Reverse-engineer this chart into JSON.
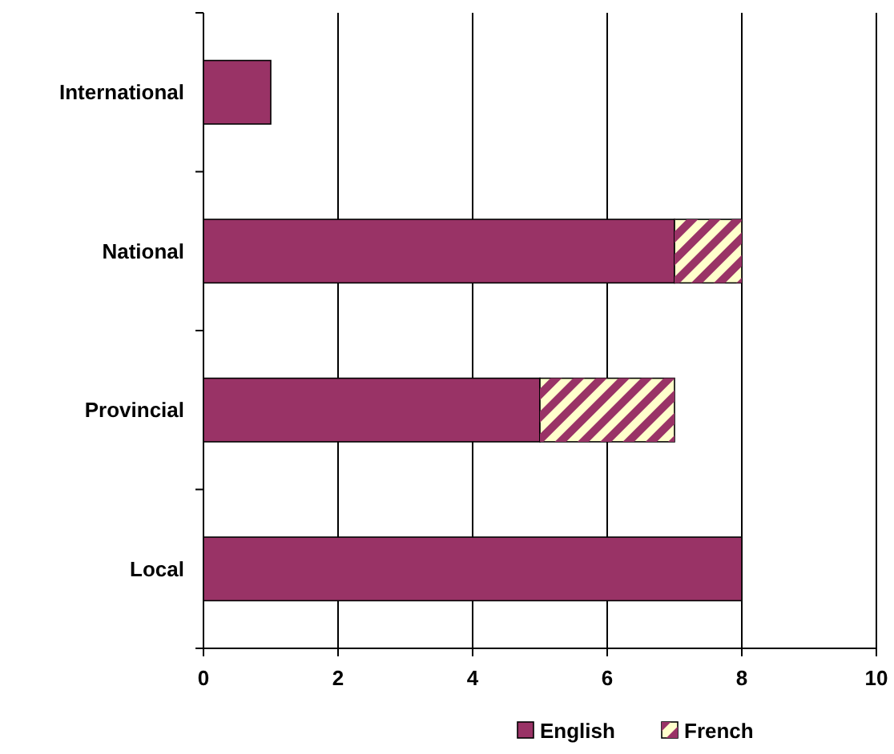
{
  "chart_data": {
    "type": "bar",
    "orientation": "horizontal",
    "stacked": true,
    "categories": [
      "International",
      "National",
      "Provincial",
      "Local"
    ],
    "series": [
      {
        "name": "English",
        "color": "#993366",
        "values": [
          1,
          7,
          5,
          8
        ]
      },
      {
        "name": "French",
        "color": "#ffffcc",
        "values": [
          0,
          1,
          2,
          0
        ]
      }
    ],
    "xlim": [
      0,
      10
    ],
    "xticks": [
      0,
      2,
      4,
      6,
      8,
      10
    ],
    "grid": "x",
    "legend": "bottom"
  }
}
